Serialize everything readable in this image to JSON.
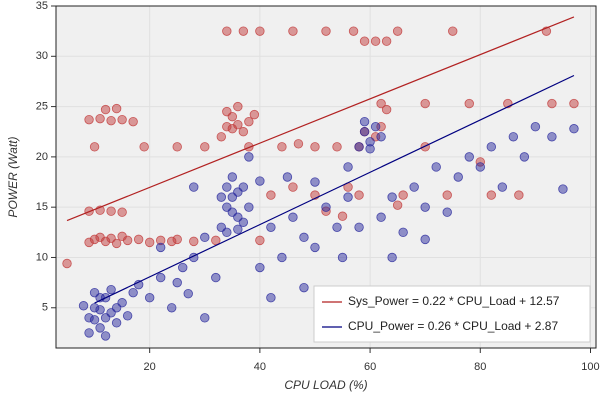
{
  "chart_data": {
    "type": "scatter",
    "x_label": "CPU LOAD (%)",
    "y_label": "POWER (Watt)",
    "xlim": [
      3,
      101
    ],
    "ylim": [
      1,
      35
    ],
    "xticks": [
      20,
      40,
      60,
      80,
      100
    ],
    "yticks": [
      5,
      10,
      15,
      20,
      25,
      30,
      35
    ],
    "grid": true,
    "legend": "lower right",
    "series": [
      {
        "color": "#c23b3b",
        "x": [
          5,
          9,
          10,
          11,
          12,
          13,
          14,
          15,
          16,
          18,
          20,
          22,
          25,
          28,
          32,
          9,
          11,
          13,
          15,
          9,
          11,
          13,
          15,
          17,
          12,
          14,
          10,
          19,
          25,
          30,
          38,
          44,
          50,
          54,
          58,
          33,
          34,
          35,
          36,
          37,
          38,
          35,
          34,
          36,
          39,
          34,
          37,
          40,
          46,
          52,
          57,
          65,
          75,
          92,
          59,
          61,
          63,
          59,
          61,
          62,
          63,
          62,
          70,
          78,
          85,
          93,
          97,
          42,
          50,
          58,
          66,
          74,
          82,
          87,
          46,
          56,
          65,
          52,
          24,
          40,
          55,
          80,
          70,
          47
        ],
        "values": [
          9.4,
          11.5,
          11.8,
          12,
          11.6,
          11.9,
          11.4,
          12.1,
          11.7,
          11.8,
          11.5,
          11.7,
          11.8,
          11.6,
          11.7,
          14.6,
          14.7,
          14.6,
          14.5,
          23.7,
          23.8,
          23.6,
          23.7,
          23.5,
          24.7,
          24.8,
          21,
          21,
          21,
          21,
          21,
          21,
          21,
          21,
          21,
          22,
          23,
          24,
          25,
          22.5,
          23.5,
          22.8,
          24.5,
          23.2,
          24.2,
          32.5,
          32.5,
          32.5,
          32.5,
          32.5,
          32.5,
          32.5,
          32.5,
          32.5,
          31.5,
          31.5,
          31.5,
          22.5,
          22,
          23,
          24.7,
          25.3,
          25.3,
          25.3,
          25.3,
          25.3,
          25.3,
          16.2,
          16.2,
          16.2,
          16.2,
          16.2,
          16.2,
          16.2,
          17,
          17,
          15.2,
          14.6,
          11.6,
          11.7,
          14.1,
          19.5,
          21,
          21.3
        ]
      },
      {
        "color": "#2b2b9e",
        "x": [
          9,
          10,
          11,
          12,
          13,
          9,
          10,
          14,
          15,
          11,
          12,
          13,
          10,
          14,
          16,
          8,
          11,
          12,
          17,
          18,
          33,
          34,
          35,
          36,
          37,
          34,
          35,
          36,
          37,
          33,
          35,
          38,
          34,
          36,
          58,
          59,
          60,
          61,
          62,
          60,
          59,
          20,
          22,
          24,
          26,
          28,
          30,
          22,
          25,
          27,
          30,
          32,
          40,
          42,
          44,
          46,
          48,
          50,
          52,
          54,
          56,
          45,
          50,
          55,
          58,
          62,
          64,
          66,
          68,
          70,
          72,
          74,
          76,
          78,
          80,
          82,
          84,
          86,
          88,
          90,
          93,
          95,
          97,
          40,
          42,
          48,
          64,
          70,
          28,
          38,
          56
        ],
        "values": [
          4,
          5,
          3,
          6,
          4.5,
          2.5,
          6.5,
          3.5,
          5.5,
          4.8,
          2.2,
          6.8,
          3.8,
          5,
          4.2,
          5.2,
          6,
          4,
          6.5,
          7.3,
          13,
          15,
          16,
          14,
          17,
          12.5,
          14.5,
          16.5,
          13.5,
          16,
          18,
          15,
          17,
          12.8,
          21,
          22.5,
          21.5,
          23,
          22,
          20.8,
          23.5,
          6,
          8,
          5,
          9,
          10,
          12,
          11,
          7.5,
          6.4,
          4,
          8,
          9,
          13,
          10,
          14,
          12,
          11,
          15,
          13,
          16,
          18,
          17.5,
          10,
          13,
          14,
          16,
          12.5,
          17,
          15,
          19,
          14.5,
          18,
          20,
          19,
          21,
          17,
          22,
          20,
          23,
          22,
          16.8,
          22.8,
          17.6,
          6,
          7,
          10,
          11.8,
          17,
          20,
          19
        ]
      }
    ],
    "fits": [
      {
        "name": "Sys_Power = 0.22 * CPU_Load + 12.57",
        "color": "#b22222",
        "x": [
          5,
          97
        ],
        "values": [
          13.67,
          33.91
        ]
      },
      {
        "name": "CPU_Power = 0.26 * CPU_Load + 2.87",
        "color": "#000080",
        "x": [
          10,
          97
        ],
        "values": [
          5.47,
          28.09
        ]
      }
    ]
  }
}
